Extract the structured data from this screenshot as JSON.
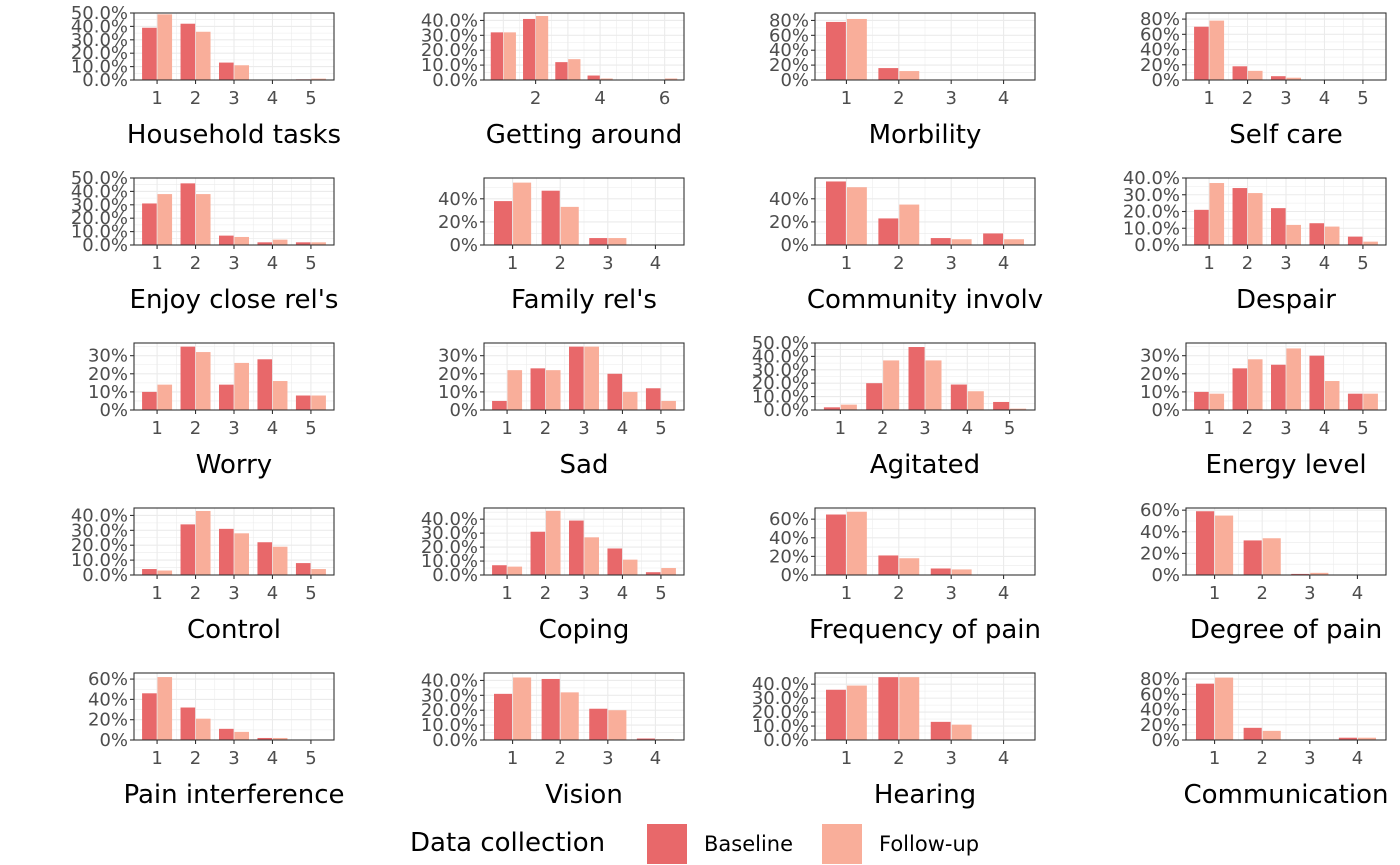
{
  "colors": {
    "Baseline": "#e8686a",
    "Follow-up": "#f9ae9a",
    "panel_border": "#333333",
    "grid": "#ebebeb"
  },
  "legend": {
    "title": "Data collection",
    "items": [
      "Baseline",
      "Follow-up"
    ]
  },
  "chart_data": [
    {
      "type": "bar",
      "xlabel": "Household tasks",
      "categories": [
        "1",
        "2",
        "3",
        "4",
        "5"
      ],
      "x_ticks": [
        "1",
        "2",
        "3",
        "4",
        "5"
      ],
      "y_ticks": [
        "0.0%",
        "10.0%",
        "20.0%",
        "30.0%",
        "40.0%",
        "50.0%"
      ],
      "ylim": [
        0,
        50
      ],
      "series": [
        {
          "name": "Baseline",
          "values": [
            39,
            42,
            13,
            0,
            0.5
          ]
        },
        {
          "name": "Follow-up",
          "values": [
            49,
            36,
            11,
            0,
            1
          ]
        }
      ]
    },
    {
      "type": "bar",
      "xlabel": "Getting around",
      "categories": [
        "1",
        "2",
        "3",
        "4",
        "5",
        "6"
      ],
      "x_ticks": [
        "2",
        "4",
        "6"
      ],
      "y_ticks": [
        "0.0%",
        "10.0%",
        "20.0%",
        "30.0%",
        "40.0%"
      ],
      "ylim": [
        0,
        45
      ],
      "series": [
        {
          "name": "Baseline",
          "values": [
            32,
            41,
            12,
            3,
            0,
            0
          ]
        },
        {
          "name": "Follow-up",
          "values": [
            32,
            43,
            14,
            1,
            0,
            1
          ]
        }
      ]
    },
    {
      "type": "bar",
      "xlabel": "Morbility",
      "categories": [
        "1",
        "2",
        "3",
        "4"
      ],
      "x_ticks": [
        "1",
        "2",
        "3",
        "4"
      ],
      "y_ticks": [
        "0%",
        "20%",
        "40%",
        "60%",
        "80%"
      ],
      "ylim": [
        0,
        90
      ],
      "series": [
        {
          "name": "Baseline",
          "values": [
            78,
            16,
            0,
            0
          ]
        },
        {
          "name": "Follow-up",
          "values": [
            82,
            12,
            0,
            0
          ]
        }
      ]
    },
    {
      "type": "bar",
      "xlabel": "Self care",
      "categories": [
        "1",
        "2",
        "3",
        "4",
        "5"
      ],
      "x_ticks": [
        "1",
        "2",
        "3",
        "4",
        "5"
      ],
      "y_ticks": [
        "0%",
        "20%",
        "40%",
        "60%",
        "80%"
      ],
      "ylim": [
        0,
        88
      ],
      "series": [
        {
          "name": "Baseline",
          "values": [
            70,
            18,
            5,
            0.5,
            0
          ]
        },
        {
          "name": "Follow-up",
          "values": [
            78,
            12,
            3,
            0,
            0
          ]
        }
      ]
    },
    {
      "type": "bar",
      "xlabel": "Enjoy close rel's",
      "categories": [
        "1",
        "2",
        "3",
        "4",
        "5"
      ],
      "x_ticks": [
        "1",
        "2",
        "3",
        "4",
        "5"
      ],
      "y_ticks": [
        "0.0%",
        "10.0%",
        "20.0%",
        "30.0%",
        "40.0%",
        "50.0%"
      ],
      "ylim": [
        0,
        50
      ],
      "series": [
        {
          "name": "Baseline",
          "values": [
            31,
            46,
            7,
            2,
            2
          ]
        },
        {
          "name": "Follow-up",
          "values": [
            38,
            38,
            6,
            4,
            2
          ]
        }
      ]
    },
    {
      "type": "bar",
      "xlabel": "Family rel's",
      "categories": [
        "1",
        "2",
        "3",
        "4"
      ],
      "x_ticks": [
        "1",
        "2",
        "3",
        "4"
      ],
      "y_ticks": [
        "0%",
        "20%",
        "40%"
      ],
      "ylim": [
        0,
        58
      ],
      "series": [
        {
          "name": "Baseline",
          "values": [
            38,
            47,
            6,
            0
          ]
        },
        {
          "name": "Follow-up",
          "values": [
            54,
            33,
            6,
            0
          ]
        }
      ]
    },
    {
      "type": "bar",
      "xlabel": "Community involv",
      "categories": [
        "1",
        "2",
        "3",
        "4"
      ],
      "x_ticks": [
        "1",
        "2",
        "3",
        "4"
      ],
      "y_ticks": [
        "0%",
        "20%",
        "40%"
      ],
      "ylim": [
        0,
        58
      ],
      "series": [
        {
          "name": "Baseline",
          "values": [
            55,
            23,
            6,
            10
          ]
        },
        {
          "name": "Follow-up",
          "values": [
            50,
            35,
            5,
            5
          ]
        }
      ]
    },
    {
      "type": "bar",
      "xlabel": "Despair",
      "categories": [
        "1",
        "2",
        "3",
        "4",
        "5"
      ],
      "x_ticks": [
        "1",
        "2",
        "3",
        "4",
        "5"
      ],
      "y_ticks": [
        "0.0%",
        "10.0%",
        "20.0%",
        "30.0%",
        "40.0%"
      ],
      "ylim": [
        0,
        40
      ],
      "series": [
        {
          "name": "Baseline",
          "values": [
            21,
            34,
            22,
            13,
            5
          ]
        },
        {
          "name": "Follow-up",
          "values": [
            37,
            31,
            12,
            11,
            2
          ]
        }
      ]
    },
    {
      "type": "bar",
      "xlabel": "Worry",
      "categories": [
        "1",
        "2",
        "3",
        "4",
        "5"
      ],
      "x_ticks": [
        "1",
        "2",
        "3",
        "4",
        "5"
      ],
      "y_ticks": [
        "0%",
        "10%",
        "20%",
        "30%"
      ],
      "ylim": [
        0,
        37
      ],
      "series": [
        {
          "name": "Baseline",
          "values": [
            10,
            35,
            14,
            28,
            8
          ]
        },
        {
          "name": "Follow-up",
          "values": [
            14,
            32,
            26,
            16,
            8
          ]
        }
      ]
    },
    {
      "type": "bar",
      "xlabel": "Sad",
      "categories": [
        "1",
        "2",
        "3",
        "4",
        "5"
      ],
      "x_ticks": [
        "1",
        "2",
        "3",
        "4",
        "5"
      ],
      "y_ticks": [
        "0%",
        "10%",
        "20%",
        "30%"
      ],
      "ylim": [
        0,
        37
      ],
      "series": [
        {
          "name": "Baseline",
          "values": [
            5,
            23,
            35,
            20,
            12
          ]
        },
        {
          "name": "Follow-up",
          "values": [
            22,
            22,
            35,
            10,
            5
          ]
        }
      ]
    },
    {
      "type": "bar",
      "xlabel": "Agitated",
      "categories": [
        "1",
        "2",
        "3",
        "4",
        "5"
      ],
      "x_ticks": [
        "1",
        "2",
        "3",
        "4",
        "5"
      ],
      "y_ticks": [
        "0.0%",
        "10.0%",
        "20.0%",
        "30.0%",
        "40.0%",
        "50.0%"
      ],
      "ylim": [
        0,
        50
      ],
      "series": [
        {
          "name": "Baseline",
          "values": [
            2,
            20,
            47,
            19,
            6
          ]
        },
        {
          "name": "Follow-up",
          "values": [
            4,
            37,
            37,
            14,
            1
          ]
        }
      ]
    },
    {
      "type": "bar",
      "xlabel": "Energy level",
      "categories": [
        "1",
        "2",
        "3",
        "4",
        "5"
      ],
      "x_ticks": [
        "1",
        "2",
        "3",
        "4",
        "5"
      ],
      "y_ticks": [
        "0%",
        "10%",
        "20%",
        "30%"
      ],
      "ylim": [
        0,
        37
      ],
      "series": [
        {
          "name": "Baseline",
          "values": [
            10,
            23,
            25,
            30,
            9
          ]
        },
        {
          "name": "Follow-up",
          "values": [
            9,
            28,
            34,
            16,
            9
          ]
        }
      ]
    },
    {
      "type": "bar",
      "xlabel": "Control",
      "categories": [
        "1",
        "2",
        "3",
        "4",
        "5"
      ],
      "x_ticks": [
        "1",
        "2",
        "3",
        "4",
        "5"
      ],
      "y_ticks": [
        "0.0%",
        "10.0%",
        "20.0%",
        "30.0%",
        "40.0%"
      ],
      "ylim": [
        0,
        45
      ],
      "series": [
        {
          "name": "Baseline",
          "values": [
            4,
            34,
            31,
            22,
            8
          ]
        },
        {
          "name": "Follow-up",
          "values": [
            3,
            43,
            28,
            19,
            4
          ]
        }
      ]
    },
    {
      "type": "bar",
      "xlabel": "Coping",
      "categories": [
        "1",
        "2",
        "3",
        "4",
        "5"
      ],
      "x_ticks": [
        "1",
        "2",
        "3",
        "4",
        "5"
      ],
      "y_ticks": [
        "0.0%",
        "10.0%",
        "20.0%",
        "30.0%",
        "40.0%"
      ],
      "ylim": [
        0,
        48
      ],
      "series": [
        {
          "name": "Baseline",
          "values": [
            7,
            31,
            39,
            19,
            2
          ]
        },
        {
          "name": "Follow-up",
          "values": [
            6,
            46,
            27,
            11,
            5
          ]
        }
      ]
    },
    {
      "type": "bar",
      "xlabel": "Frequency of pain",
      "categories": [
        "1",
        "2",
        "3",
        "4"
      ],
      "x_ticks": [
        "1",
        "2",
        "3",
        "4"
      ],
      "y_ticks": [
        "0%",
        "20%",
        "40%",
        "60%"
      ],
      "ylim": [
        0,
        72
      ],
      "series": [
        {
          "name": "Baseline",
          "values": [
            65,
            21,
            7,
            0
          ]
        },
        {
          "name": "Follow-up",
          "values": [
            68,
            18,
            6,
            0
          ]
        }
      ]
    },
    {
      "type": "bar",
      "xlabel": "Degree of pain",
      "categories": [
        "1",
        "2",
        "3",
        "4"
      ],
      "x_ticks": [
        "1",
        "2",
        "3",
        "4"
      ],
      "y_ticks": [
        "0%",
        "20%",
        "40%",
        "60%"
      ],
      "ylim": [
        0,
        62
      ],
      "series": [
        {
          "name": "Baseline",
          "values": [
            59,
            32,
            1,
            0
          ]
        },
        {
          "name": "Follow-up",
          "values": [
            55,
            34,
            2,
            0
          ]
        }
      ]
    },
    {
      "type": "bar",
      "xlabel": "Pain interference",
      "categories": [
        "1",
        "2",
        "3",
        "4",
        "5"
      ],
      "x_ticks": [
        "1",
        "2",
        "3",
        "4",
        "5"
      ],
      "y_ticks": [
        "0%",
        "20%",
        "40%",
        "60%"
      ],
      "ylim": [
        0,
        66
      ],
      "series": [
        {
          "name": "Baseline",
          "values": [
            46,
            32,
            11,
            2,
            0
          ]
        },
        {
          "name": "Follow-up",
          "values": [
            62,
            21,
            8,
            2,
            0
          ]
        }
      ]
    },
    {
      "type": "bar",
      "xlabel": "Vision",
      "categories": [
        "1",
        "2",
        "3",
        "4"
      ],
      "x_ticks": [
        "1",
        "2",
        "3",
        "4"
      ],
      "y_ticks": [
        "0.0%",
        "10.0%",
        "20.0%",
        "30.0%",
        "40.0%"
      ],
      "ylim": [
        0,
        45
      ],
      "series": [
        {
          "name": "Baseline",
          "values": [
            31,
            41,
            21,
            1
          ]
        },
        {
          "name": "Follow-up",
          "values": [
            42,
            32,
            20,
            0.5
          ]
        }
      ]
    },
    {
      "type": "bar",
      "xlabel": "Hearing",
      "categories": [
        "1",
        "2",
        "3",
        "4"
      ],
      "x_ticks": [
        "1",
        "2",
        "3",
        "4"
      ],
      "y_ticks": [
        "0.0%",
        "10.0%",
        "20.0%",
        "30.0%",
        "40.0%"
      ],
      "ylim": [
        0,
        48
      ],
      "series": [
        {
          "name": "Baseline",
          "values": [
            36,
            45,
            13,
            0
          ]
        },
        {
          "name": "Follow-up",
          "values": [
            39,
            45,
            11,
            0
          ]
        }
      ]
    },
    {
      "type": "bar",
      "xlabel": "Communication",
      "categories": [
        "1",
        "2",
        "3",
        "4"
      ],
      "x_ticks": [
        "1",
        "2",
        "3",
        "4"
      ],
      "y_ticks": [
        "0%",
        "20%",
        "40%",
        "60%",
        "80%"
      ],
      "ylim": [
        0,
        88
      ],
      "series": [
        {
          "name": "Baseline",
          "values": [
            74,
            16,
            0,
            3
          ]
        },
        {
          "name": "Follow-up",
          "values": [
            82,
            12,
            0,
            3
          ]
        }
      ]
    }
  ]
}
